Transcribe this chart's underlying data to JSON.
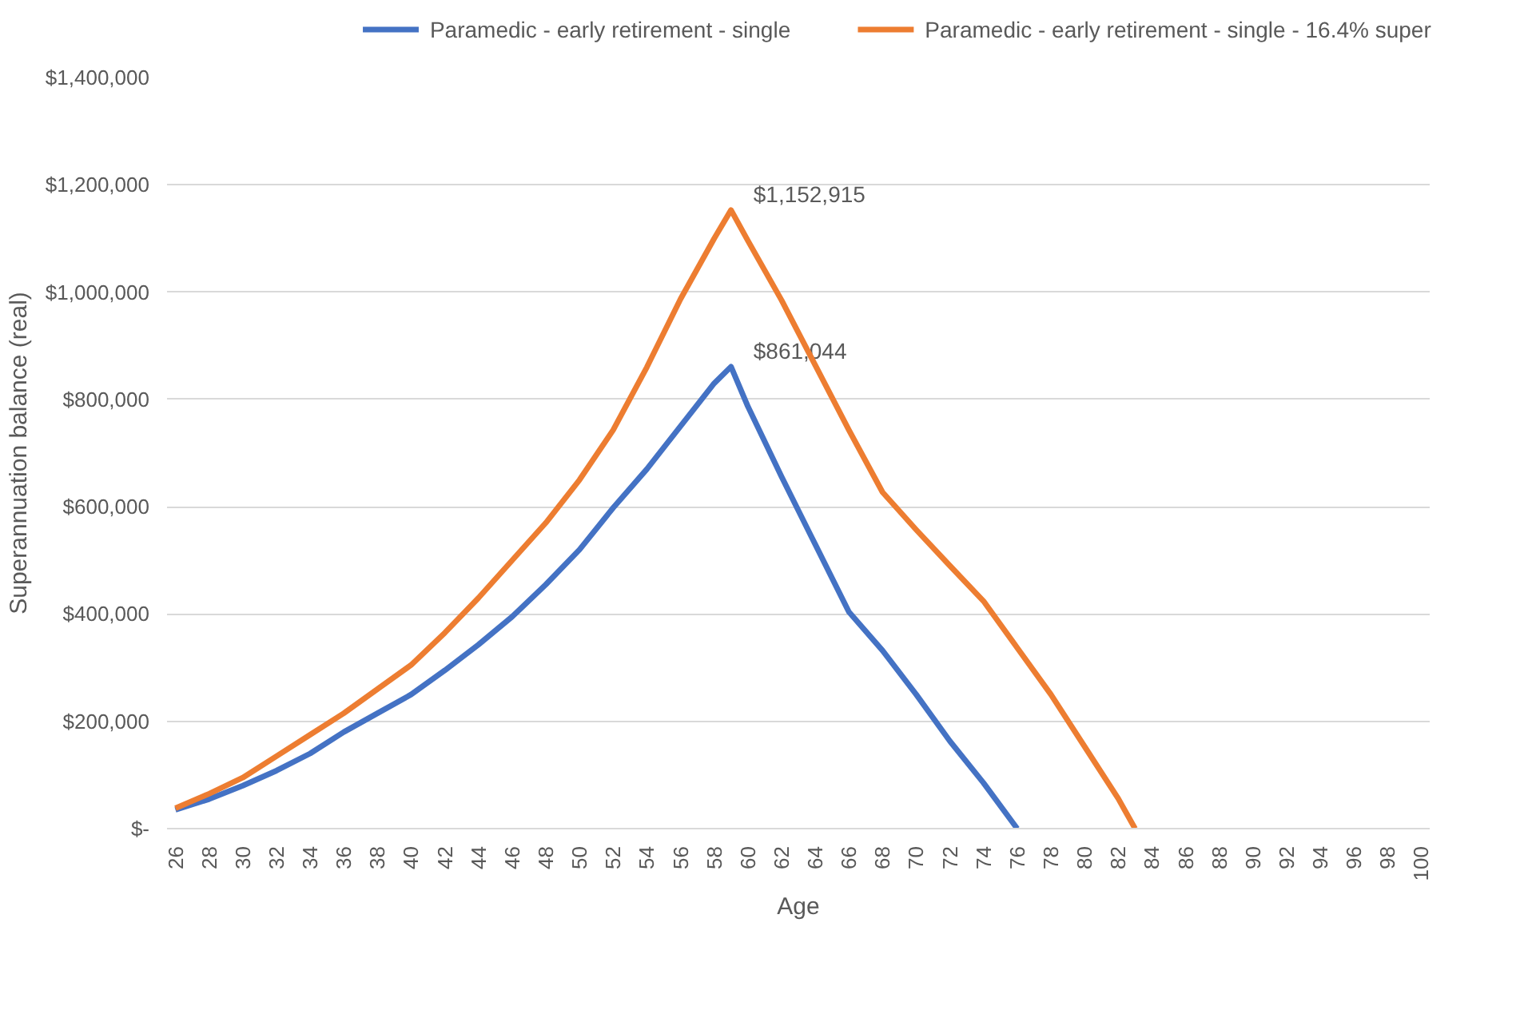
{
  "chart_data": {
    "type": "line",
    "xlabel": "Age",
    "ylabel": "Superannuation balance (real)",
    "xlim": [
      25.5,
      100.5
    ],
    "xticks": [
      26,
      28,
      30,
      32,
      34,
      36,
      38,
      40,
      42,
      44,
      46,
      48,
      50,
      52,
      54,
      56,
      58,
      60,
      62,
      64,
      66,
      68,
      70,
      72,
      74,
      76,
      78,
      80,
      82,
      84,
      86,
      88,
      90,
      92,
      94,
      96,
      98,
      100
    ],
    "ylim": [
      0,
      1400000
    ],
    "yticks": [
      {
        "value": 0,
        "label": "$-"
      },
      {
        "value": 200000,
        "label": "$200,000"
      },
      {
        "value": 400000,
        "label": "$400,000"
      },
      {
        "value": 600000,
        "label": "$600,000"
      },
      {
        "value": 800000,
        "label": "$800,000"
      },
      {
        "value": 1000000,
        "label": "$1,000,000"
      },
      {
        "value": 1200000,
        "label": "$1,200,000"
      },
      {
        "value": 1400000,
        "label": "$1,400,000"
      }
    ],
    "grid": "y",
    "legend": "top",
    "marker": "none",
    "line_style": "solid",
    "series": [
      {
        "name": "Paramedic - early retirement - single",
        "color": "#4472c4",
        "x": [
          26,
          28,
          30,
          32,
          34,
          36,
          38,
          40,
          42,
          44,
          46,
          48,
          50,
          52,
          54,
          56,
          58,
          59,
          60,
          62,
          64,
          66,
          68,
          70,
          72,
          74,
          76
        ],
        "values": [
          35000,
          55000,
          80000,
          108000,
          140000,
          180000,
          215000,
          250000,
          295000,
          343000,
          395000,
          455000,
          520000,
          598000,
          670000,
          750000,
          830000,
          861044,
          787000,
          656000,
          530000,
          404000,
          332000,
          250000,
          163000,
          85000,
          0
        ],
        "value_labels": [
          null,
          null,
          null,
          null,
          null,
          null,
          null,
          null,
          null,
          null,
          null,
          null,
          null,
          null,
          null,
          null,
          null,
          "$861,044",
          null,
          null,
          null,
          null,
          null,
          null,
          null,
          null,
          null
        ]
      },
      {
        "name": "Paramedic - early retirement - single - 16.4% super",
        "color": "#ed7d31",
        "x": [
          26,
          28,
          30,
          32,
          34,
          36,
          38,
          40,
          42,
          44,
          46,
          48,
          50,
          52,
          54,
          56,
          58,
          59,
          60,
          62,
          64,
          66,
          68,
          70,
          72,
          74,
          76,
          78,
          80,
          82,
          83
        ],
        "values": [
          38000,
          65000,
          95000,
          135000,
          175000,
          215000,
          260000,
          305000,
          365000,
          430000,
          500000,
          570000,
          650000,
          743000,
          860000,
          987000,
          1100000,
          1152915,
          1096000,
          985000,
          864000,
          743000,
          627000,
          557000,
          490000,
          424000,
          337000,
          250000,
          153000,
          56000,
          0
        ],
        "value_labels": [
          null,
          null,
          null,
          null,
          null,
          null,
          null,
          null,
          null,
          null,
          null,
          null,
          null,
          null,
          null,
          null,
          null,
          "$1,152,915",
          null,
          null,
          null,
          null,
          null,
          null,
          null,
          null,
          null,
          null,
          null,
          null,
          null
        ]
      }
    ]
  }
}
